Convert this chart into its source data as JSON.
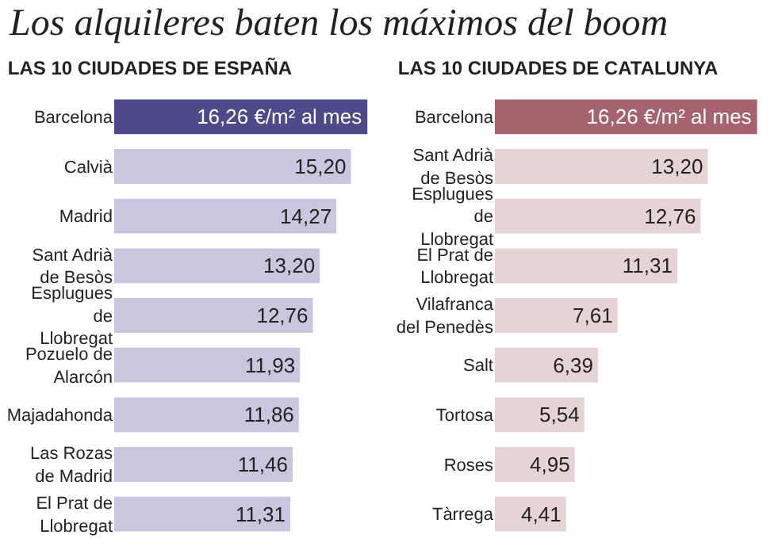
{
  "chart_data": [
    {
      "type": "bar",
      "orientation": "horizontal",
      "title": "Los alquileres baten los máximos del boom",
      "subtitle": "LAS 10 CIUDADES DE ESPAÑA",
      "categories": [
        "Barcelona",
        "Calvià",
        "Madrid",
        "Sant Adrià de Besòs",
        "Esplugues de Llobregat",
        "Pozuelo de Alarcón",
        "Majadahonda",
        "Las Rozas de Madrid",
        "El Prat de Llobregat"
      ],
      "values": [
        16.26,
        15.2,
        14.27,
        13.2,
        12.76,
        11.93,
        11.86,
        11.46,
        11.31
      ],
      "colors": [
        "#4b4a8a",
        "#cac6e0",
        "#cac6e0",
        "#cac6e0",
        "#cac6e0",
        "#cac6e0",
        "#cac6e0",
        "#cac6e0",
        "#cac6e0"
      ],
      "value_labels": [
        "16,26 €/m² al mes",
        "15,20",
        "14,27",
        "13,20",
        "12,76",
        "11,93",
        "11,86",
        "11,46",
        "11,31"
      ]
    },
    {
      "type": "bar",
      "orientation": "horizontal",
      "title": "LAS 10 CIUDADES DE CATALUNYA",
      "categories": [
        "Barcelona",
        "Sant Adrià de Besòs",
        "Esplugues de Llobregat",
        "El Prat de Llobregat",
        "Vilafranca del Penedès",
        "Salt",
        "Tortosa",
        "Roses",
        "Tàrrega"
      ],
      "values": [
        16.26,
        13.2,
        12.76,
        11.31,
        7.61,
        6.39,
        5.54,
        4.95,
        4.41
      ],
      "colors": [
        "#a5636e",
        "#e6d3d6",
        "#e6d3d6",
        "#e6d3d6",
        "#e6d3d6",
        "#e6d3d6",
        "#e6d3d6",
        "#e6d3d6",
        "#e6d3d6"
      ],
      "value_labels": [
        "16,26 €/m² al mes",
        "13,20",
        "12,76",
        "11,31",
        "7,61",
        "6,39",
        "5,54",
        "4,95",
        "4,41"
      ]
    }
  ]
}
